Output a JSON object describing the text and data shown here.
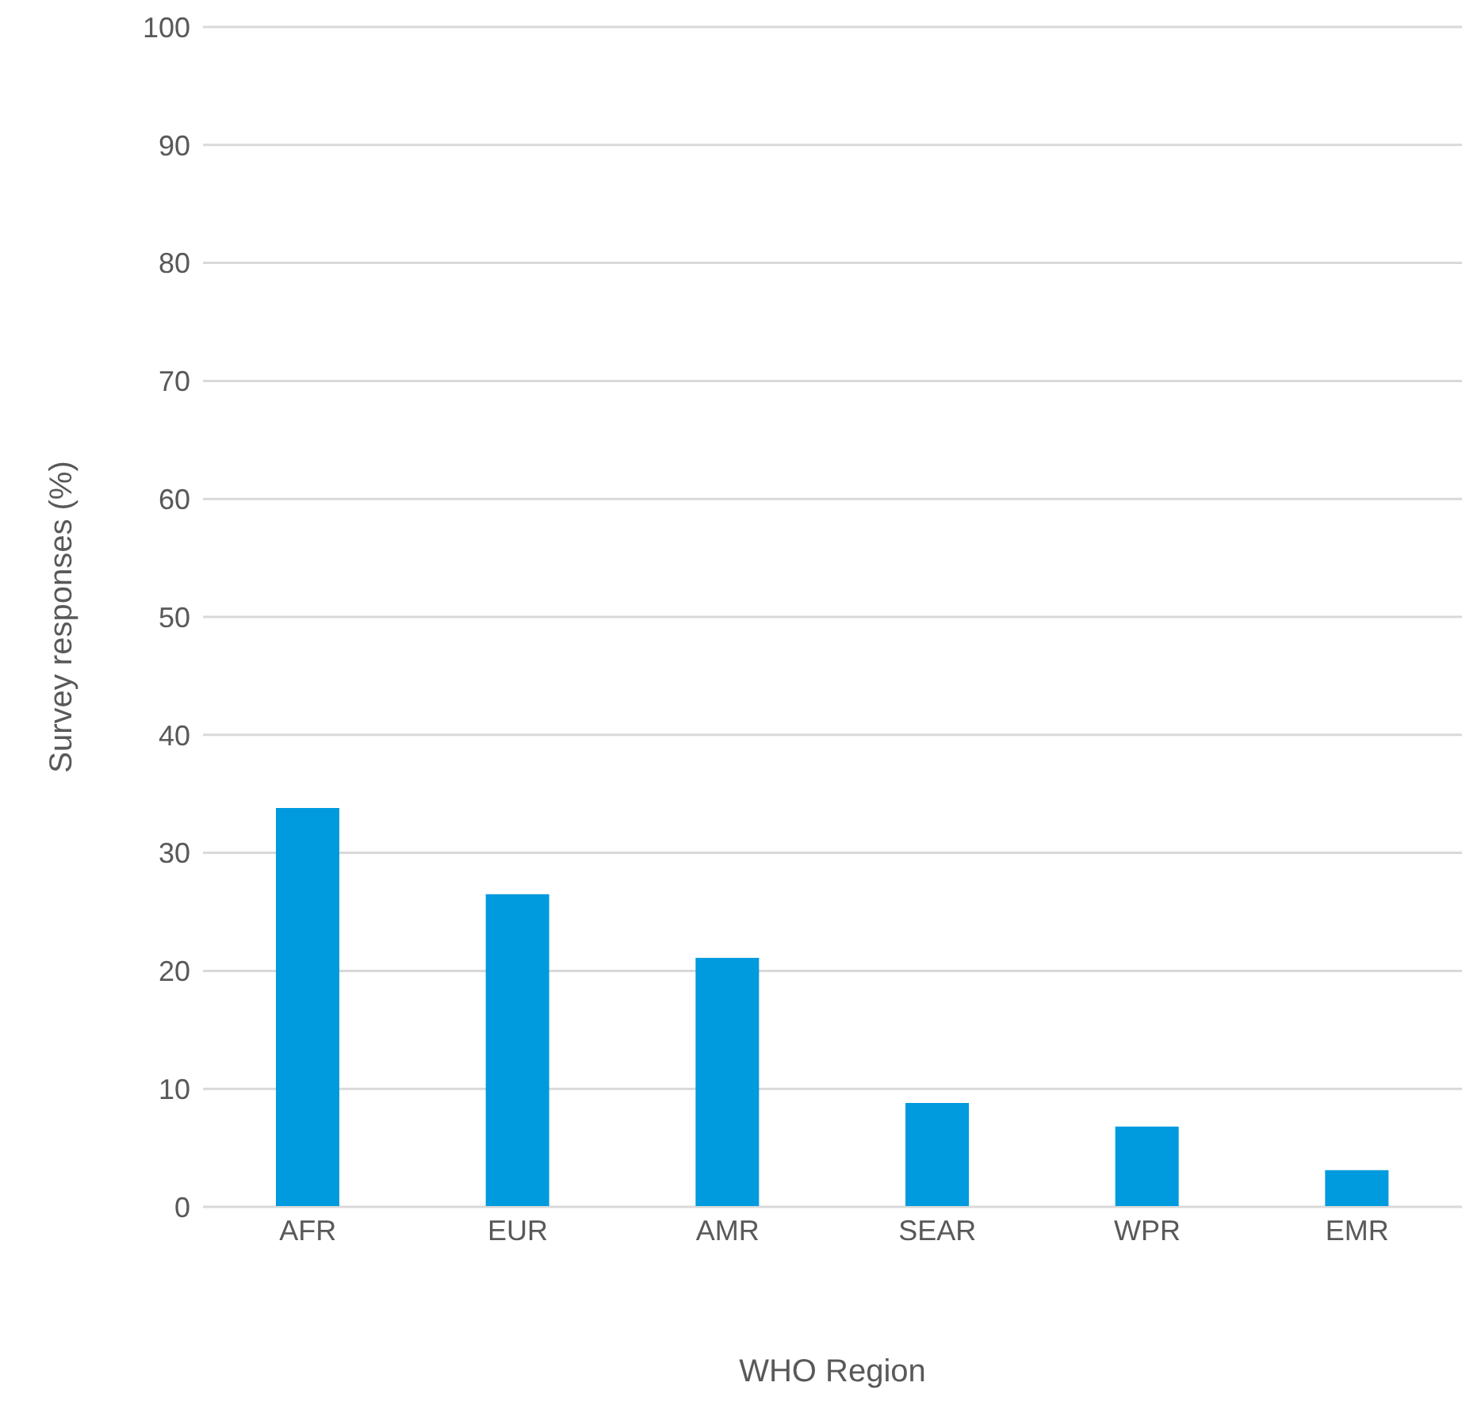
{
  "chart_data": {
    "type": "bar",
    "xlabel": "WHO Region",
    "ylabel": "Survey responses (%)",
    "categories": [
      "AFR",
      "EUR",
      "AMR",
      "SEAR",
      "WPR",
      "EMR"
    ],
    "values": [
      33.8,
      26.5,
      21.1,
      8.8,
      6.8,
      3.1
    ],
    "color": "#009ade",
    "ylim": [
      0,
      100
    ],
    "yticks": [
      0,
      10,
      20,
      30,
      40,
      50,
      60,
      70,
      80,
      90,
      100
    ],
    "grid": "y"
  }
}
